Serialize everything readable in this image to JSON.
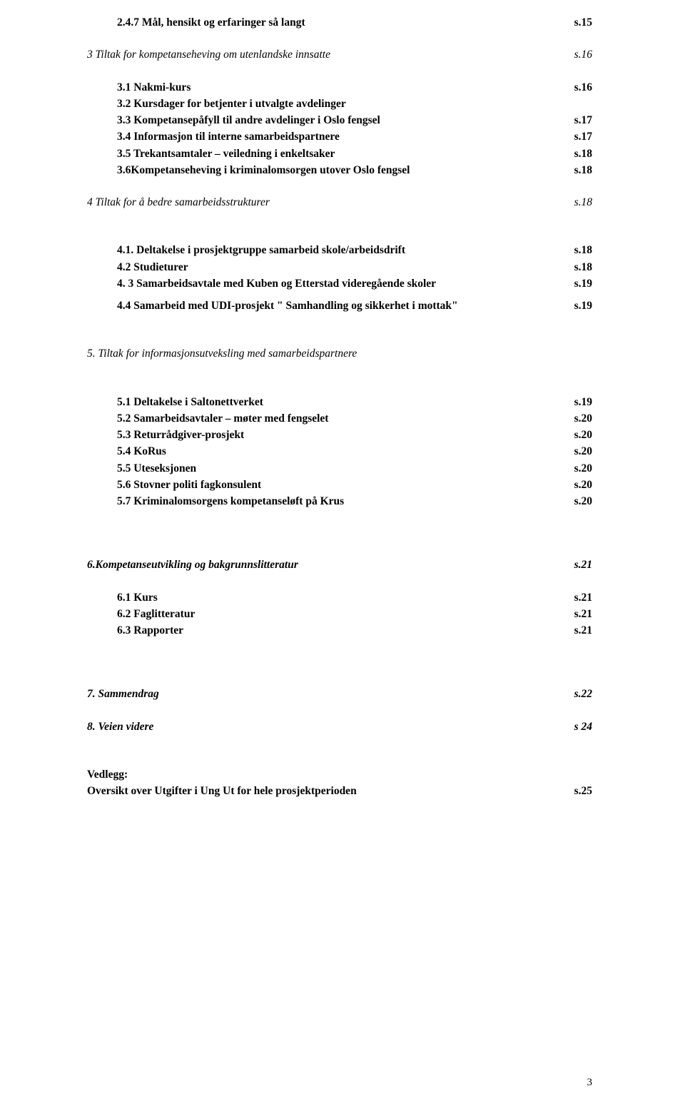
{
  "colors": {
    "text": "#000000",
    "background": "#ffffff"
  },
  "typography": {
    "family": "Times New Roman",
    "size_pt": 12,
    "line_height": 1.5
  },
  "lines": {
    "l1": {
      "label": "2.4.7 Mål, hensikt og erfaringer så langt",
      "page": "s.15"
    },
    "l2": {
      "label": "3 Tiltak for kompetanseheving om utenlandske innsatte",
      "page": "s.16"
    },
    "l3": {
      "label": "3.1 Nakmi-kurs",
      "page": "s.16"
    },
    "l4": {
      "label": "3.2 Kursdager for betjenter i utvalgte avdelinger",
      "page": ""
    },
    "l5": {
      "label": "3.3 Kompetansepåfyll til andre avdelinger i Oslo fengsel",
      "page": "s.17"
    },
    "l6": {
      "label": "3.4 Informasjon til interne samarbeidspartnere",
      "page": "s.17"
    },
    "l7": {
      "label": "3.5 Trekantsamtaler – veiledning i enkeltsaker",
      "page": "s.18"
    },
    "l8": {
      "label": "3.6Kompetanseheving i kriminalomsorgen utover Oslo fengsel",
      "page": "s.18"
    },
    "l9": {
      "label": "4 Tiltak for å bedre samarbeidsstrukturer",
      "page": "s.18"
    },
    "l10": {
      "label": "4.1. Deltakelse i prosjektgruppe samarbeid skole/arbeidsdrift",
      "page": "s.18"
    },
    "l11": {
      "label": "4.2 Studieturer",
      "page": "s.18"
    },
    "l12": {
      "label": "4. 3 Samarbeidsavtale med Kuben og Etterstad videregående skoler",
      "page": "s.19"
    },
    "l13": {
      "label": "4.4 Samarbeid med UDI-prosjekt \" Samhandling og sikkerhet i mottak\"",
      "page": "s.19"
    },
    "l14": {
      "label": "5. Tiltak for informasjonsutveksling med samarbeidspartnere",
      "page": ""
    },
    "l15": {
      "label": "5.1 Deltakelse i Saltonettverket",
      "page": "s.19"
    },
    "l16": {
      "label": "5.2 Samarbeidsavtaler – møter med fengselet",
      "page": "s.20"
    },
    "l17": {
      "label": "5.3 Returrådgiver-prosjekt",
      "page": "s.20"
    },
    "l18": {
      "label": "5.4 KoRus",
      "page": "s.20"
    },
    "l19": {
      "label": "5.5 Uteseksjonen",
      "page": "s.20"
    },
    "l20": {
      "label": "5.6 Stovner politi fagkonsulent",
      "page": "s.20"
    },
    "l21": {
      "label": "5.7 Kriminalomsorgens kompetanseløft på Krus",
      "page": "s.20"
    },
    "l22": {
      "label": "6.Kompetanseutvikling og bakgrunnslitteratur",
      "page": "s.21"
    },
    "l23": {
      "label": "6.1 Kurs",
      "page": "s.21"
    },
    "l24": {
      "label": "6.2 Faglitteratur",
      "page": "s.21"
    },
    "l25": {
      "label": "6.3 Rapporter",
      "page": "s.21"
    },
    "l26": {
      "label": "7. Sammendrag",
      "page": "s.22"
    },
    "l27": {
      "label": "8. Veien videre",
      "page": "s 24"
    },
    "l28": {
      "label": "Vedlegg:",
      "page": ""
    },
    "l29": {
      "label": "Oversikt over Utgifter i Ung Ut for hele prosjektperioden",
      "page": "s.25"
    }
  },
  "pageNumber": "3"
}
